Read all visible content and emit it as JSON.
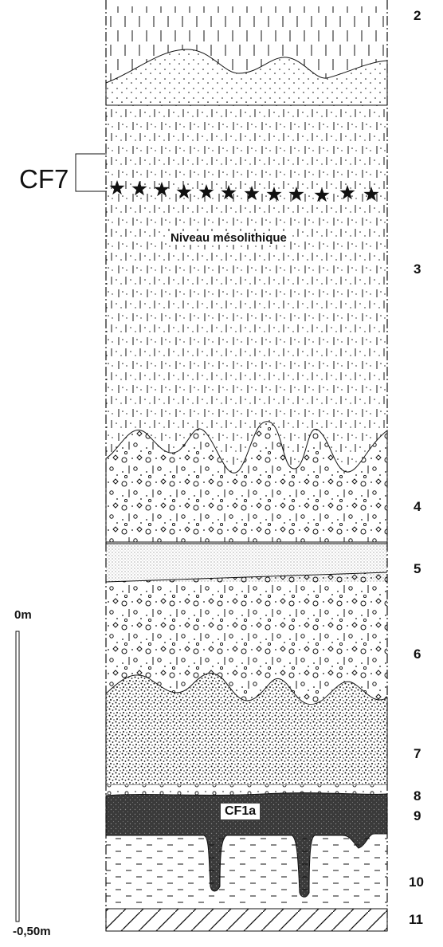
{
  "figure": {
    "bracket_label": "CF7",
    "marker_label": "Niveau mésolithique",
    "sample_label": "CF1a",
    "scale": {
      "top_label": "0m",
      "bottom_label": "-0,50m"
    }
  },
  "layers": [
    {
      "id": "2",
      "pattern": "dashed-over-dotted"
    },
    {
      "id": "3",
      "pattern": "dashed-dotted"
    },
    {
      "id": "4",
      "pattern": "gravel-circles"
    },
    {
      "id": "5",
      "pattern": "fine-stipple"
    },
    {
      "id": "6",
      "pattern": "gravel-circles"
    },
    {
      "id": "7",
      "pattern": "dense-dots"
    },
    {
      "id": "8",
      "pattern": "sparse-circles"
    },
    {
      "id": "9",
      "pattern": "dark-stipple"
    },
    {
      "id": "10",
      "pattern": "short-dashes"
    },
    {
      "id": "11",
      "pattern": "hatched-bedrock"
    }
  ],
  "colors": {
    "ink": "#111111",
    "dark_layer": "#3a3a3a",
    "background": "#ffffff"
  }
}
